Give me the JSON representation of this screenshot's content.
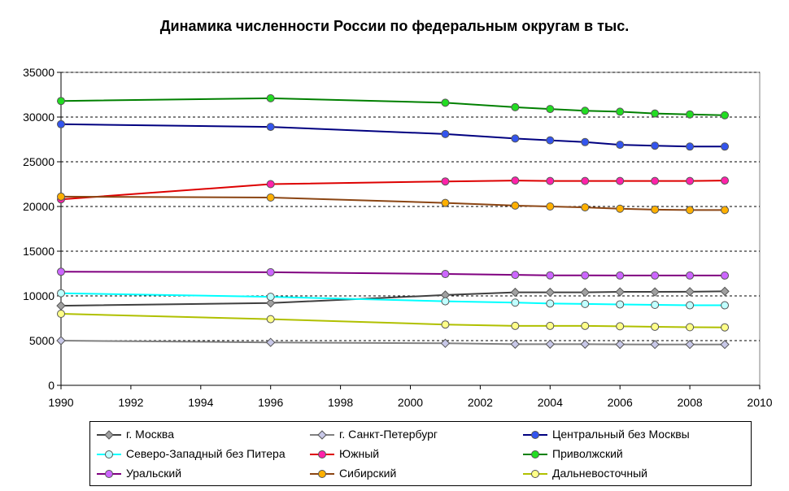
{
  "chart_data": {
    "type": "line",
    "title": "Динамика численности России по федеральным округам в тыс.",
    "xlabel": "",
    "ylabel": "",
    "xlim": [
      1990,
      2010
    ],
    "ylim": [
      0,
      35000
    ],
    "x_ticks": [
      "1990",
      "1992",
      "1994",
      "1996",
      "1998",
      "2000",
      "2002",
      "2004",
      "2006",
      "2008",
      "2010"
    ],
    "y_ticks": [
      "0",
      "5000",
      "10000",
      "15000",
      "20000",
      "25000",
      "30000",
      "35000"
    ],
    "grid": "horizontal dashed",
    "legend_position": "bottom",
    "x": [
      1990,
      1996,
      2001,
      2003,
      2004,
      2005,
      2006,
      2007,
      2008,
      2009
    ],
    "series": [
      {
        "name": "г. Москва",
        "line": "#404040",
        "marker": "diamond",
        "fill": "#a0a0a0",
        "values": [
          8900,
          9200,
          10100,
          10400,
          10400,
          10400,
          10450,
          10450,
          10470,
          10510
        ]
      },
      {
        "name": "г. Санкт-Петербург",
        "line": "#808080",
        "marker": "diamond",
        "fill": "#c8c8e8",
        "values": [
          5000,
          4800,
          4700,
          4600,
          4600,
          4600,
          4580,
          4570,
          4570,
          4570
        ]
      },
      {
        "name": "Центральный без Москвы",
        "line": "#000080",
        "marker": "circle",
        "fill": "#3355ee",
        "values": [
          29200,
          28900,
          28100,
          27600,
          27400,
          27200,
          26900,
          26800,
          26700,
          26700
        ]
      },
      {
        "name": "Северо-Западный без Питера",
        "line": "#00ffff",
        "marker": "circle",
        "fill": "#c0ffff",
        "values": [
          10300,
          9900,
          9400,
          9250,
          9150,
          9100,
          9050,
          9000,
          8950,
          8950
        ]
      },
      {
        "name": "Южный",
        "line": "#dd0000",
        "marker": "circle",
        "fill": "#ff22aa",
        "values": [
          20800,
          22500,
          22800,
          22900,
          22850,
          22850,
          22850,
          22850,
          22850,
          22900
        ]
      },
      {
        "name": "Приволжский",
        "line": "#008000",
        "marker": "circle",
        "fill": "#22dd22",
        "values": [
          31800,
          32100,
          31600,
          31100,
          30900,
          30700,
          30600,
          30400,
          30300,
          30200
        ]
      },
      {
        "name": "Уральский",
        "line": "#800080",
        "marker": "circle",
        "fill": "#cc66ff",
        "values": [
          12700,
          12650,
          12450,
          12350,
          12300,
          12300,
          12280,
          12280,
          12280,
          12280
        ]
      },
      {
        "name": "Сибирский",
        "line": "#8b4513",
        "marker": "circle",
        "fill": "#ffb000",
        "values": [
          21100,
          21000,
          20400,
          20100,
          20000,
          19900,
          19750,
          19650,
          19600,
          19600
        ]
      },
      {
        "name": "Дальневосточный",
        "line": "#b0c000",
        "marker": "circle",
        "fill": "#ffff88",
        "values": [
          8000,
          7400,
          6800,
          6650,
          6650,
          6650,
          6600,
          6550,
          6500,
          6480
        ]
      }
    ]
  }
}
